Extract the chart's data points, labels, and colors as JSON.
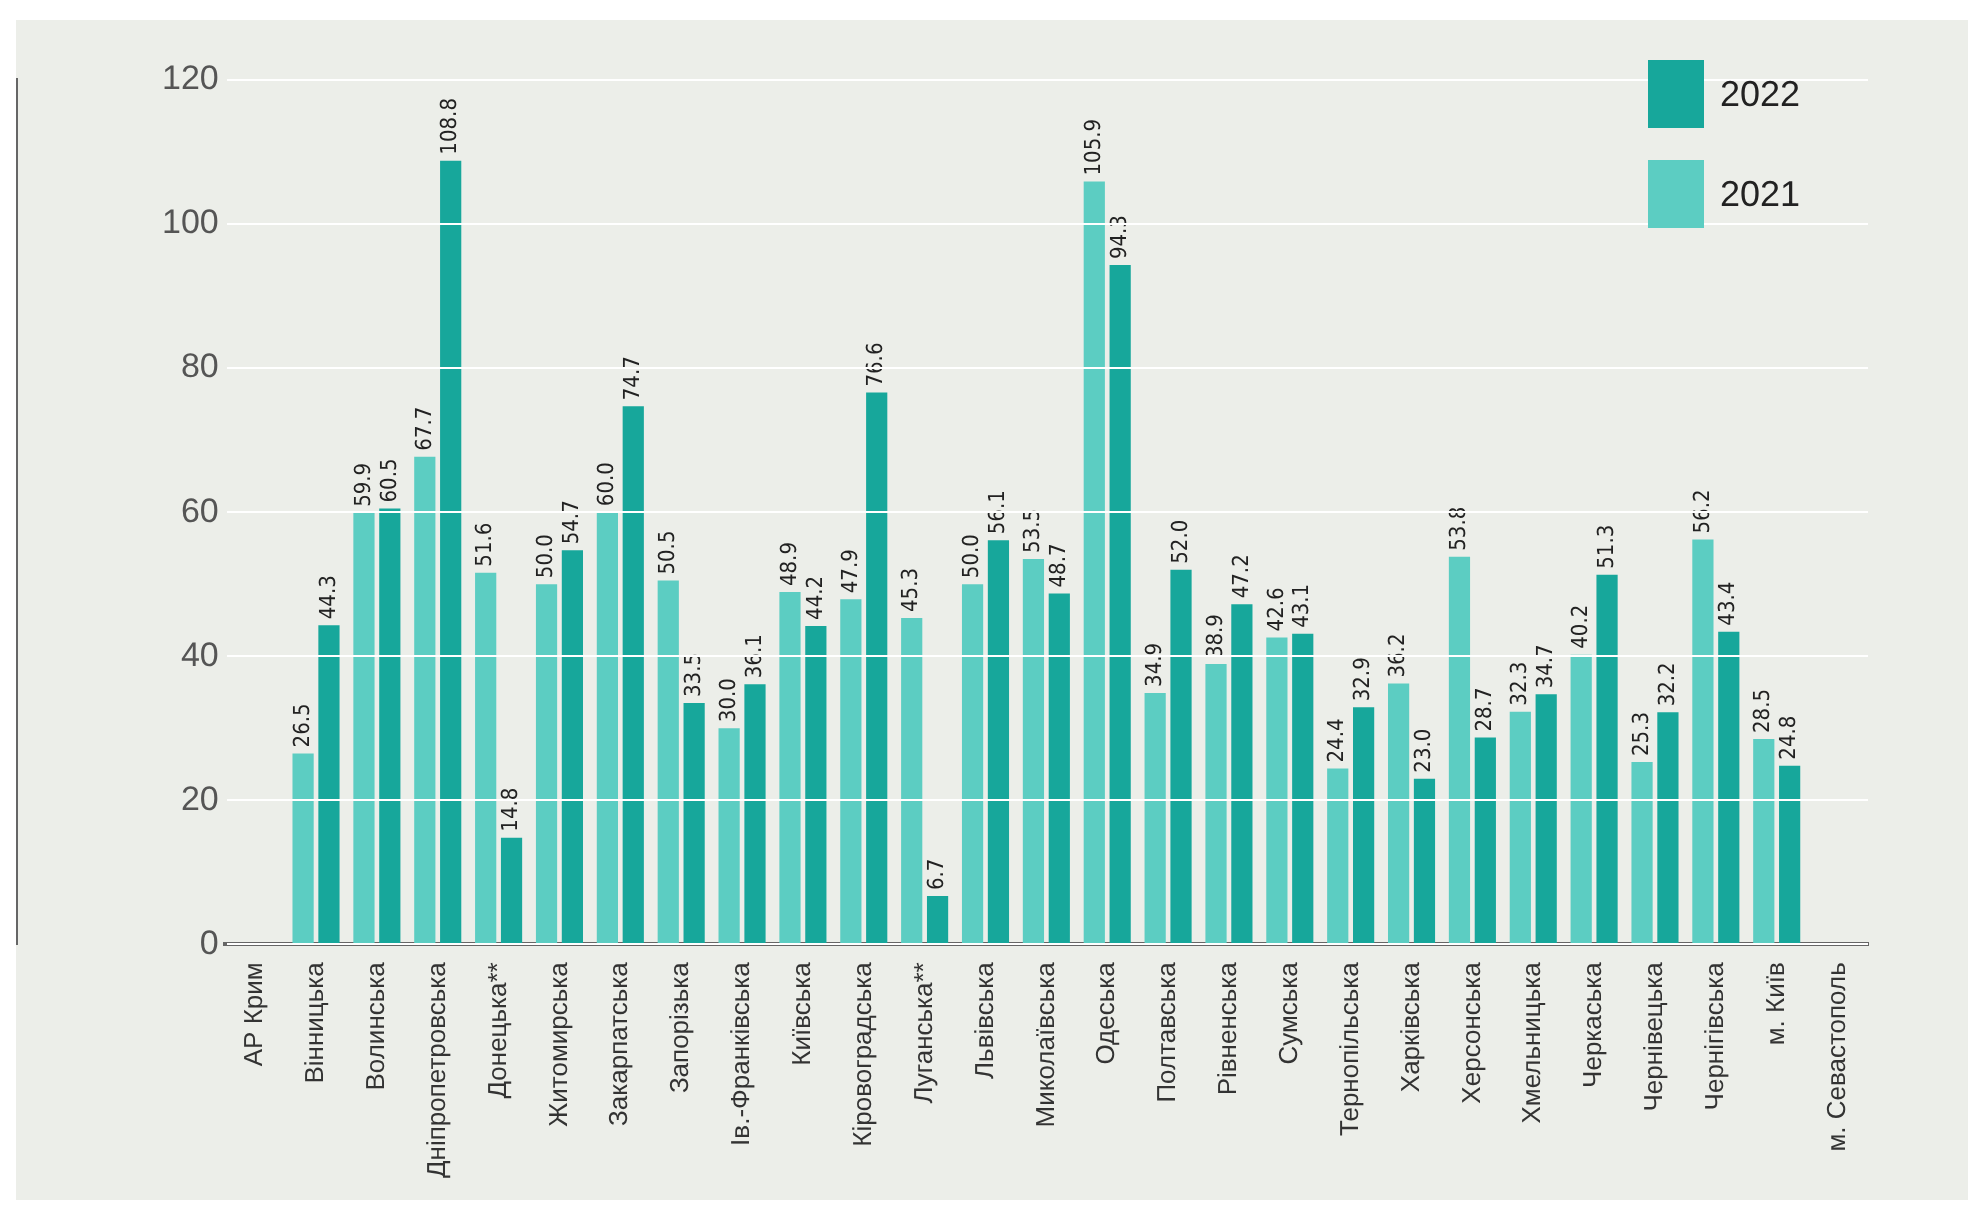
{
  "chart_data": {
    "type": "bar",
    "categories": [
      "АР Крим",
      "Вінницька",
      "Волинська",
      "Дніпропетровська",
      "Донецька**",
      "Житомирська",
      "Закарпатська",
      "Запорізька",
      "Ів.-Франківська",
      "Київська",
      "Кіровоградська",
      "Луганська**",
      "Львівська",
      "Миколаївська",
      "Одеська",
      "Полтавська",
      "Рівненська",
      "Сумська",
      "Тернопільська",
      "Харківська",
      "Херсонська",
      "Хмельницька",
      "Черкаська",
      "Чернівецька",
      "Чернігівська",
      "м. Київ",
      "м. Севастополь"
    ],
    "series": [
      {
        "name": "2021",
        "color": "#5ccdc2",
        "values": [
          null,
          26.5,
          59.9,
          67.7,
          51.6,
          50.0,
          60.0,
          50.5,
          30.0,
          48.9,
          47.9,
          45.3,
          50.0,
          53.5,
          105.9,
          34.9,
          38.9,
          42.6,
          24.4,
          36.2,
          53.8,
          32.3,
          40.2,
          25.3,
          56.2,
          28.5,
          null
        ],
        "value_labels": [
          null,
          "26.5",
          "59.9",
          "67.7",
          "51.6",
          "50.0",
          "60.0",
          "50.5",
          "30.0",
          "48.9",
          "47.9",
          "45.3",
          "50.0",
          "53.5",
          "105.9",
          "34.9",
          "38.9",
          "42.6",
          "24.4",
          "36.2",
          "53.8",
          "32.3",
          "40.2",
          "25.3",
          "56.2",
          "28.5",
          null
        ]
      },
      {
        "name": "2022",
        "color": "#17a79b",
        "values": [
          null,
          44.3,
          60.5,
          108.8,
          14.8,
          54.7,
          74.7,
          33.5,
          36.1,
          44.2,
          76.6,
          6.7,
          56.1,
          48.7,
          94.3,
          52.0,
          47.2,
          43.1,
          32.9,
          23.0,
          28.7,
          34.7,
          51.3,
          32.2,
          43.4,
          24.8,
          null
        ],
        "value_labels": [
          null,
          "44.3",
          "60.5",
          "108.8",
          "14.8",
          "54.7",
          "74.7",
          "33.5",
          "36.1",
          "44.2",
          "76.6",
          "6.7",
          "56.1",
          "48.7",
          "94.3",
          "52.0",
          "47.2",
          "43.1",
          "32.9",
          "23.0",
          "28.7",
          "34.7",
          "51.3",
          "32.2",
          "43.4",
          "24.8",
          null
        ]
      }
    ],
    "ylim": [
      0,
      120
    ],
    "yticks": [
      0,
      20,
      40,
      60,
      80,
      100,
      120
    ],
    "grid": "y",
    "legend": "top right"
  }
}
